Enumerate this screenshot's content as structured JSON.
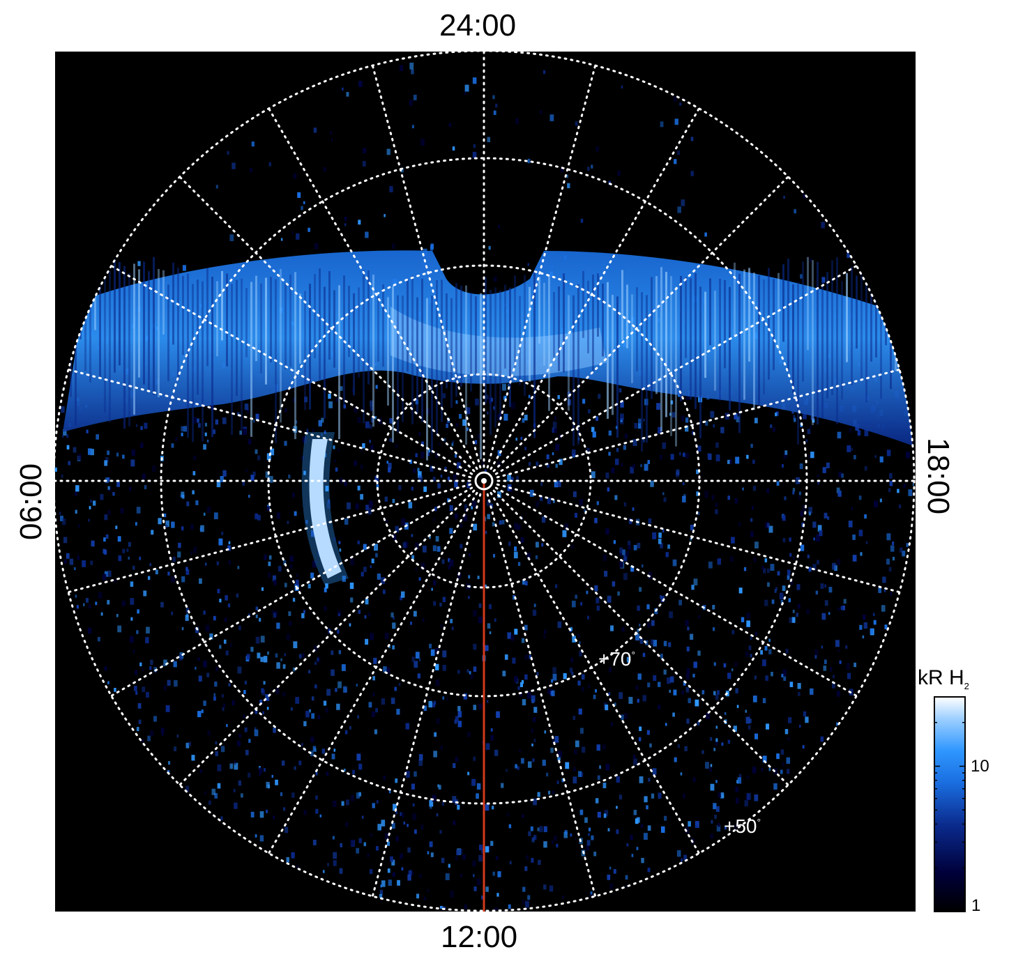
{
  "local_time_labels": {
    "top": "24:00",
    "bottom": "12:00",
    "left": "06:00",
    "right": "18:00"
  },
  "latitude_labels": {
    "inner": "+70",
    "outer": "+50",
    "degree_symbol": "°"
  },
  "colorbar": {
    "title_main": "kR H",
    "title_subscript": "2",
    "scale": "log",
    "range": [
      1,
      30
    ],
    "ticks": [
      "10",
      "1"
    ]
  },
  "colors": {
    "background": "#000000",
    "grid": "#ffffff",
    "meridian_line": "#d23a1c",
    "colormap": [
      "#000000",
      "#00003a",
      "#0a2a8c",
      "#1a6ee0",
      "#2f97ff",
      "#9fd0ff",
      "#ffffff"
    ]
  },
  "features": [
    "auroral-main-oval",
    "dawn-side-arc",
    "noon-meridian-line",
    "pole-marker"
  ]
}
